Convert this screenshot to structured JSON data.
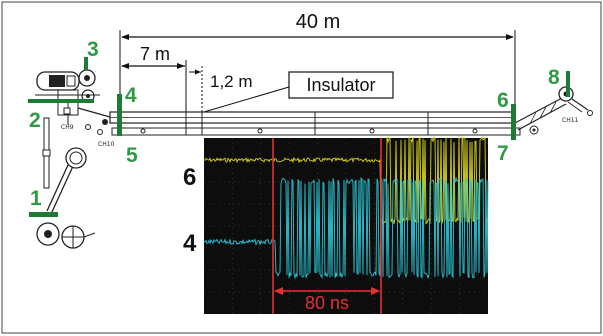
{
  "dimensions": {
    "total": "40 m",
    "segment": "7 m",
    "insulator_gap": "1,2 m"
  },
  "insulator_label": "Insulator",
  "port_numbers": [
    "1",
    "2",
    "3",
    "4",
    "5",
    "6",
    "7",
    "8"
  ],
  "component_tags": {
    "ch9": "CH9",
    "ch10": "CH10",
    "ch11": "CH11"
  },
  "oscilloscope": {
    "channel_upper": "6",
    "channel_lower": "4",
    "time_interval": "80 ns",
    "colors": {
      "upper_trace": "#d9d21a",
      "lower_trace": "#29c6d6",
      "marker": "#e53030",
      "background": "#0d0d0d"
    }
  },
  "colors": {
    "port_number": "#2e9a45",
    "port_bar": "#1e7b36"
  }
}
